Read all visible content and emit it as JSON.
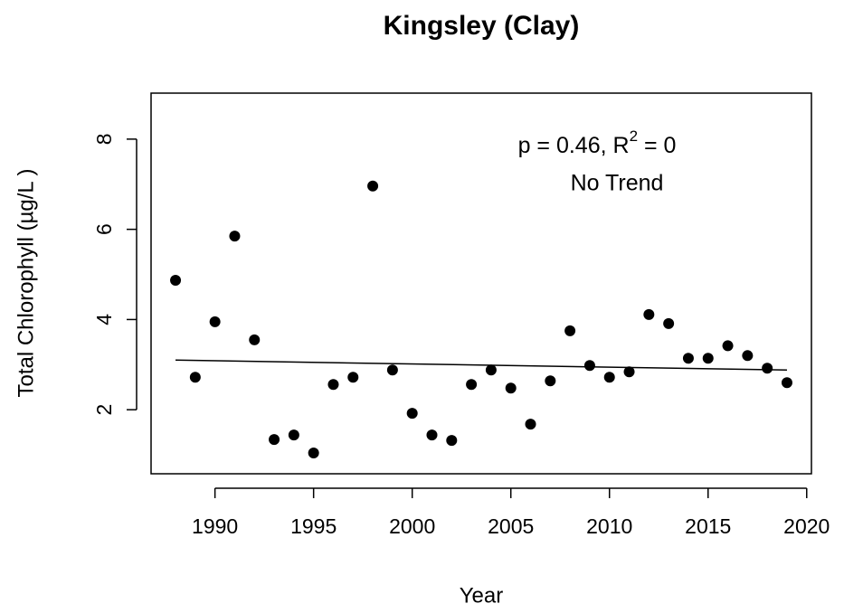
{
  "chart_data": {
    "type": "scatter",
    "title": "Kingsley (Clay)",
    "x_label": "Year",
    "y_label": "Total Chlorophyll (µg/L )",
    "annotation": {
      "text": "p = 0.46, R",
      "superscript": "2",
      "text_after": " = 0",
      "line2": "No Trend"
    },
    "x": [
      1988,
      1989,
      1990,
      1991,
      1992,
      1993,
      1994,
      1995,
      1996,
      1997,
      1998,
      1999,
      2000,
      2001,
      2002,
      2003,
      2004,
      2005,
      2006,
      2007,
      2008,
      2009,
      2010,
      2011,
      2012,
      2013,
      2014,
      2015,
      2016,
      2017,
      2018,
      2019
    ],
    "values": [
      4.87,
      2.72,
      3.95,
      5.85,
      3.55,
      1.34,
      1.44,
      1.04,
      2.56,
      2.72,
      6.96,
      2.88,
      1.92,
      1.44,
      1.32,
      2.56,
      2.88,
      2.48,
      1.68,
      2.64,
      3.75,
      2.98,
      2.72,
      2.84,
      4.11,
      3.91,
      3.14,
      3.14,
      3.42,
      3.2,
      2.92,
      2.6
    ],
    "color": "#000000",
    "trend": {
      "x": [
        1988,
        2019
      ],
      "values": [
        3.1,
        2.88
      ],
      "color": "#000000"
    },
    "xlim": [
      1986.76,
      2020.24
    ],
    "ylim": [
      0.58,
      9.02
    ],
    "xticks": [
      1990,
      1995,
      2000,
      2005,
      2010,
      2015,
      2020
    ],
    "yticks": [
      2,
      4,
      6,
      8
    ],
    "grid": false
  }
}
